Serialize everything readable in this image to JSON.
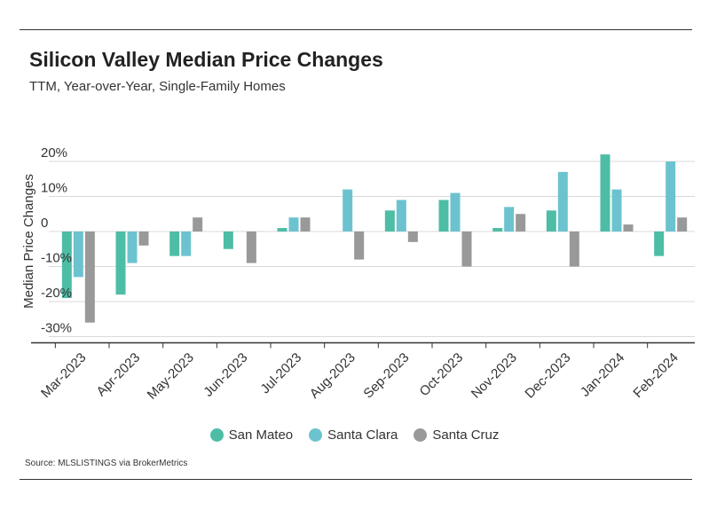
{
  "header": {
    "title": "Silicon Valley Median Price Changes",
    "subtitle": "TTM, Year-over-Year, Single-Family Homes"
  },
  "footer": {
    "source": "Source:  MLSLISTINGS via BrokerMetrics"
  },
  "chart_data": {
    "type": "bar",
    "title": "Silicon Valley Median Price Changes",
    "subtitle": "TTM, Year-over-Year, Single-Family Homes",
    "xlabel": "",
    "ylabel": "Median Price Changes",
    "ylim": [
      -31,
      21
    ],
    "yticks": [
      20,
      10,
      0,
      -10,
      -20,
      -30
    ],
    "ytick_labels": [
      "20%",
      "10%",
      "0",
      "-10%",
      "-20%",
      "-30%"
    ],
    "grid": true,
    "legend_position": "bottom",
    "categories": [
      "Mar-2023",
      "Apr-2023",
      "May-2023",
      "Jun-2023",
      "Jul-2023",
      "Aug-2023",
      "Sep-2023",
      "Oct-2023",
      "Nov-2023",
      "Dec-2023",
      "Jan-2024",
      "Feb-2024"
    ],
    "series": [
      {
        "name": "San Mateo",
        "color": "#4dbda6",
        "values": [
          -19,
          -18,
          -7,
          -5,
          1,
          0,
          6,
          9,
          1,
          6,
          22,
          -7
        ]
      },
      {
        "name": "Santa Clara",
        "color": "#6cc3cf",
        "values": [
          -13,
          -9,
          -7,
          0,
          4,
          12,
          9,
          11,
          7,
          17,
          12,
          20
        ]
      },
      {
        "name": "Santa Cruz",
        "color": "#999999",
        "values": [
          -26,
          -4,
          4,
          -9,
          4,
          -8,
          -3,
          -10,
          5,
          -10,
          2,
          4
        ]
      }
    ]
  }
}
